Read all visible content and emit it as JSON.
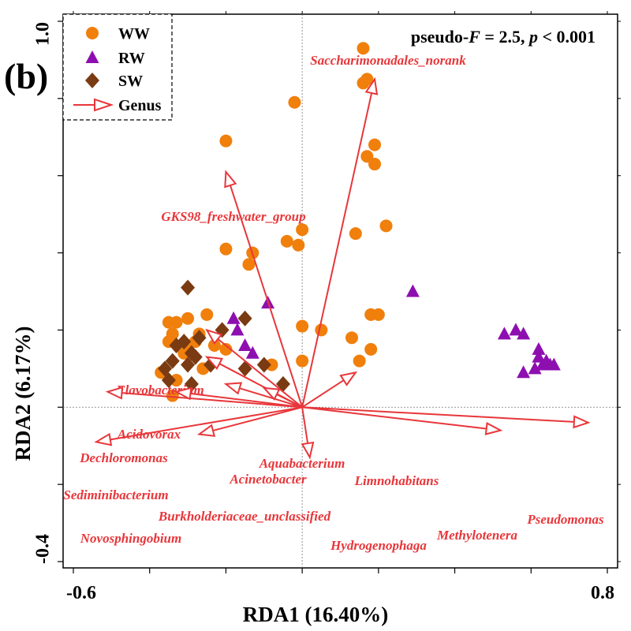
{
  "chart_data": {
    "type": "scatter",
    "panel_label": "(b)",
    "stat_text": {
      "part1": "pseudo-",
      "F": "F",
      "part2": " = 2.5, ",
      "p": "p",
      "part3": " < 0.001"
    },
    "xlabel": "RDA1 (16.40%)",
    "ylabel": "RDA2 (6.17%)",
    "xlim": [
      -0.6,
      0.8
    ],
    "ylim": [
      -0.4,
      1.0
    ],
    "x_tick_labels": [
      {
        "value": -0.6,
        "label": "-0.6"
      },
      {
        "value": 0.8,
        "label": "0.8"
      }
    ],
    "y_tick_labels": [
      {
        "value": 1.0,
        "label": "1.0"
      },
      {
        "value": -0.4,
        "label": "-0.4"
      }
    ],
    "legend": {
      "position": "top-left",
      "entries": [
        {
          "label": "WW",
          "marker": "circle",
          "color": "#f07f0c"
        },
        {
          "label": "RW",
          "marker": "triangle",
          "color": "#8e0fb0"
        },
        {
          "label": "SW",
          "marker": "diamond",
          "color": "#7a3a12"
        },
        {
          "label": "Genus",
          "marker": "arrow",
          "color": "#e8363a"
        }
      ]
    },
    "series": [
      {
        "name": "WW",
        "marker": "circle",
        "color": "#f07f0c",
        "points": [
          [
            0.16,
            0.93
          ],
          [
            0.16,
            0.84
          ],
          [
            0.17,
            0.85
          ],
          [
            -0.02,
            0.79
          ],
          [
            -0.2,
            0.69
          ],
          [
            0.19,
            0.68
          ],
          [
            0.17,
            0.65
          ],
          [
            0.19,
            0.63
          ],
          [
            0.22,
            0.47
          ],
          [
            0.0,
            0.46
          ],
          [
            0.14,
            0.45
          ],
          [
            -0.04,
            0.43
          ],
          [
            -0.01,
            0.42
          ],
          [
            -0.2,
            0.41
          ],
          [
            -0.13,
            0.4
          ],
          [
            -0.14,
            0.37
          ],
          [
            0.18,
            0.24
          ],
          [
            0.2,
            0.24
          ],
          [
            -0.25,
            0.24
          ],
          [
            -0.3,
            0.23
          ],
          [
            -0.33,
            0.22
          ],
          [
            -0.35,
            0.22
          ],
          [
            -0.34,
            0.19
          ],
          [
            -0.27,
            0.19
          ],
          [
            0.0,
            0.21
          ],
          [
            0.05,
            0.2
          ],
          [
            -0.28,
            0.17
          ],
          [
            -0.3,
            0.16
          ],
          [
            -0.35,
            0.17
          ],
          [
            -0.31,
            0.15
          ],
          [
            -0.31,
            0.14
          ],
          [
            -0.2,
            0.15
          ],
          [
            -0.23,
            0.16
          ],
          [
            0.18,
            0.15
          ],
          [
            0.15,
            0.12
          ],
          [
            0.0,
            0.12
          ],
          [
            -0.08,
            0.11
          ],
          [
            -0.26,
            0.1
          ],
          [
            -0.33,
            0.07
          ],
          [
            -0.37,
            0.09
          ],
          [
            -0.34,
            0.03
          ],
          [
            0.13,
            0.18
          ]
        ]
      },
      {
        "name": "RW",
        "marker": "triangle",
        "color": "#8e0fb0",
        "points": [
          [
            0.29,
            0.3
          ],
          [
            -0.09,
            0.27
          ],
          [
            -0.18,
            0.23
          ],
          [
            -0.17,
            0.2
          ],
          [
            -0.15,
            0.16
          ],
          [
            -0.13,
            0.14
          ],
          [
            0.56,
            0.2
          ],
          [
            0.53,
            0.19
          ],
          [
            0.58,
            0.19
          ],
          [
            0.62,
            0.15
          ],
          [
            0.62,
            0.13
          ],
          [
            0.64,
            0.12
          ],
          [
            0.65,
            0.11
          ],
          [
            0.66,
            0.11
          ],
          [
            0.63,
            0.11
          ],
          [
            0.61,
            0.1
          ],
          [
            0.58,
            0.09
          ]
        ]
      },
      {
        "name": "SW",
        "marker": "diamond",
        "color": "#7a3a12",
        "points": [
          [
            -0.3,
            0.31
          ],
          [
            -0.15,
            0.23
          ],
          [
            -0.21,
            0.2
          ],
          [
            -0.27,
            0.18
          ],
          [
            -0.31,
            0.17
          ],
          [
            -0.33,
            0.16
          ],
          [
            -0.29,
            0.14
          ],
          [
            -0.28,
            0.13
          ],
          [
            -0.34,
            0.12
          ],
          [
            -0.36,
            0.1
          ],
          [
            -0.15,
            0.1
          ],
          [
            -0.1,
            0.11
          ],
          [
            -0.24,
            0.11
          ],
          [
            -0.3,
            0.11
          ],
          [
            -0.35,
            0.07
          ],
          [
            -0.29,
            0.06
          ],
          [
            -0.05,
            0.06
          ]
        ]
      }
    ],
    "genus_vectors": [
      {
        "name": "Saccharimonadales_norank",
        "x": 0.19,
        "y": 0.85
      },
      {
        "name": "GKS98_freshwater_group",
        "x": -0.2,
        "y": 0.61
      },
      {
        "name": "Flavobacterium",
        "x": -0.25,
        "y": 0.2
      },
      {
        "name": "Acidovorax",
        "x": -0.25,
        "y": 0.13
      },
      {
        "name": "Dechloromonas",
        "x": -0.51,
        "y": 0.04
      },
      {
        "name": "Sediminibacterium",
        "x": -0.33,
        "y": 0.04
      },
      {
        "name": "Novosphingobium",
        "x": -0.54,
        "y": -0.09
      },
      {
        "name": "Burkholderiaceae_unclassified",
        "x": -0.27,
        "y": -0.07
      },
      {
        "name": "Acinetobacter",
        "x": -0.2,
        "y": 0.06
      },
      {
        "name": "Aquabacterium",
        "x": -0.1,
        "y": 0.05
      },
      {
        "name": "Hydrogenophaga",
        "x": 0.02,
        "y": -0.13
      },
      {
        "name": "Limnohabitans",
        "x": 0.14,
        "y": 0.09
      },
      {
        "name": "Methylotenera",
        "x": 0.52,
        "y": -0.06
      },
      {
        "name": "Pseudomonas",
        "x": 0.75,
        "y": -0.04
      }
    ]
  }
}
